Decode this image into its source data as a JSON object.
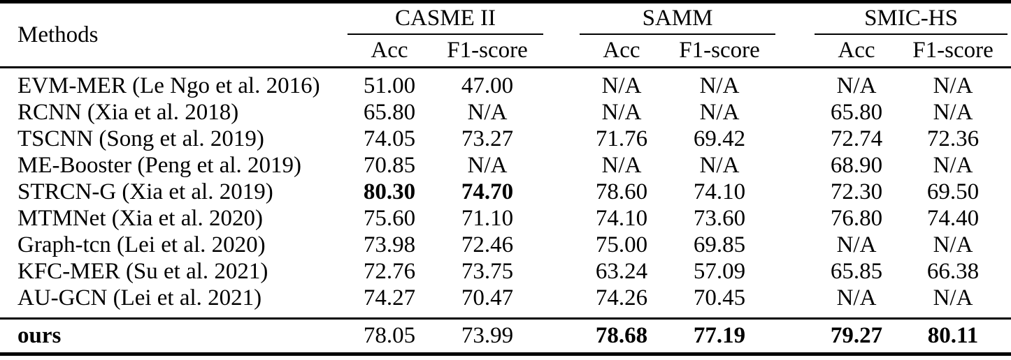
{
  "table": {
    "methods_header": "Methods",
    "groups": [
      {
        "label": "CASME II",
        "subcolumns": [
          "Acc",
          "F1-score"
        ]
      },
      {
        "label": "SAMM",
        "subcolumns": [
          "Acc",
          "F1-score"
        ]
      },
      {
        "label": "SMIC-HS",
        "subcolumns": [
          "Acc",
          "F1-score"
        ]
      }
    ],
    "rows": [
      {
        "method": "EVM-MER (Le Ngo et al. 2016)",
        "method_bold": false,
        "values": [
          "51.00",
          "47.00",
          "N/A",
          "N/A",
          "N/A",
          "N/A"
        ],
        "bold": [
          false,
          false,
          false,
          false,
          false,
          false
        ]
      },
      {
        "method": "RCNN (Xia et al. 2018)",
        "method_bold": false,
        "values": [
          "65.80",
          "N/A",
          "N/A",
          "N/A",
          "65.80",
          "N/A"
        ],
        "bold": [
          false,
          false,
          false,
          false,
          false,
          false
        ]
      },
      {
        "method": "TSCNN (Song et al. 2019)",
        "method_bold": false,
        "values": [
          "74.05",
          "73.27",
          "71.76",
          "69.42",
          "72.74",
          "72.36"
        ],
        "bold": [
          false,
          false,
          false,
          false,
          false,
          false
        ]
      },
      {
        "method": "ME-Booster (Peng et al. 2019)",
        "method_bold": false,
        "values": [
          "70.85",
          "N/A",
          "N/A",
          "N/A",
          "68.90",
          "N/A"
        ],
        "bold": [
          false,
          false,
          false,
          false,
          false,
          false
        ]
      },
      {
        "method": "STRCN-G (Xia et al. 2019)",
        "method_bold": false,
        "values": [
          "80.30",
          "74.70",
          "78.60",
          "74.10",
          "72.30",
          "69.50"
        ],
        "bold": [
          true,
          true,
          false,
          false,
          false,
          false
        ]
      },
      {
        "method": "MTMNet (Xia et al. 2020)",
        "method_bold": false,
        "values": [
          "75.60",
          "71.10",
          "74.10",
          "73.60",
          "76.80",
          "74.40"
        ],
        "bold": [
          false,
          false,
          false,
          false,
          false,
          false
        ]
      },
      {
        "method": "Graph-tcn (Lei et al. 2020)",
        "method_bold": false,
        "values": [
          "73.98",
          "72.46",
          "75.00",
          "69.85",
          "N/A",
          "N/A"
        ],
        "bold": [
          false,
          false,
          false,
          false,
          false,
          false
        ]
      },
      {
        "method": "KFC-MER (Su et al. 2021)",
        "method_bold": false,
        "values": [
          "72.76",
          "73.75",
          "63.24",
          "57.09",
          "65.85",
          "66.38"
        ],
        "bold": [
          false,
          false,
          false,
          false,
          false,
          false
        ]
      },
      {
        "method": "AU-GCN (Lei et al. 2021)",
        "method_bold": false,
        "values": [
          "74.27",
          "70.47",
          "74.26",
          "70.45",
          "N/A",
          "N/A"
        ],
        "bold": [
          false,
          false,
          false,
          false,
          false,
          false
        ]
      }
    ],
    "ours_row": {
      "method": "ours",
      "method_bold": true,
      "values": [
        "78.05",
        "73.99",
        "78.68",
        "77.19",
        "79.27",
        "80.11"
      ],
      "bold": [
        false,
        false,
        true,
        true,
        true,
        true
      ]
    },
    "na_text": "N/A"
  }
}
